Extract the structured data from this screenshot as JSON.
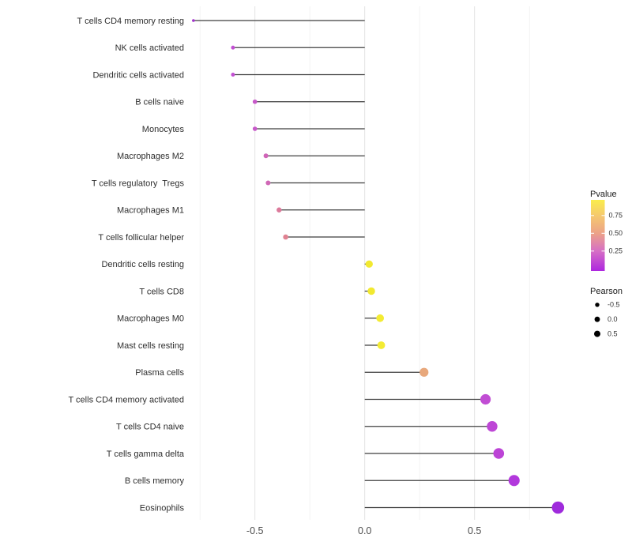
{
  "figure": {
    "background": "#ffffff",
    "panel_background": "#ffffff",
    "grid_major_color": "#e3e3e3",
    "grid_minor_color": "#f1f1f1",
    "stem_color": "#3f3f3f",
    "axis_text_color": "#4d4d4d",
    "label_text_color": "#2e2e2e"
  },
  "chart_data": {
    "type": "lollipop",
    "orientation": "horizontal",
    "title": "",
    "xlabel": "",
    "ylabel": "",
    "xlim": [
      -0.86,
      0.96
    ],
    "x_tick_values": [
      -0.5,
      0.0,
      0.5
    ],
    "x_tick_labels": [
      "-0.5",
      "0.0",
      "0.5"
    ],
    "x_minor_gridlines": [
      -0.75,
      -0.25,
      0.25,
      0.75
    ],
    "grid": "vertical gridlines only, light gray on white",
    "encoding": {
      "x": "Pearson correlation (stem from 0 to value)",
      "color": "Pvalue (purple = low, yellow = high)",
      "size": "Pearson (larger = higher value)"
    },
    "rows": [
      {
        "label": "T cells CD4 memory resting",
        "pearson": -0.78,
        "pvalue_approx": 0.03,
        "color": "#A233CC"
      },
      {
        "label": "NK cells activated",
        "pearson": -0.6,
        "pvalue_approx": 0.18,
        "color": "#C24FD2"
      },
      {
        "label": "Dendritic cells activated",
        "pearson": -0.6,
        "pvalue_approx": 0.18,
        "color": "#C24FD2"
      },
      {
        "label": "B cells naive",
        "pearson": -0.5,
        "pvalue_approx": 0.21,
        "color": "#C758C9"
      },
      {
        "label": "Monocytes",
        "pearson": -0.5,
        "pvalue_approx": 0.21,
        "color": "#C758C9"
      },
      {
        "label": "Macrophages M2",
        "pearson": -0.45,
        "pvalue_approx": 0.27,
        "color": "#D065B8"
      },
      {
        "label": "T cells regulatory  Tregs",
        "pearson": -0.44,
        "pvalue_approx": 0.27,
        "color": "#D068B6"
      },
      {
        "label": "Macrophages M1",
        "pearson": -0.39,
        "pvalue_approx": 0.35,
        "color": "#DC7A9B"
      },
      {
        "label": "T cells follicular helper",
        "pearson": -0.36,
        "pvalue_approx": 0.4,
        "color": "#E08292"
      },
      {
        "label": "Dendritic cells resting",
        "pearson": 0.02,
        "pvalue_approx": 0.92,
        "color": "#F2E930"
      },
      {
        "label": "T cells CD8",
        "pearson": 0.03,
        "pvalue_approx": 0.91,
        "color": "#F2E930"
      },
      {
        "label": "Macrophages M0",
        "pearson": 0.07,
        "pvalue_approx": 0.89,
        "color": "#F3EB33"
      },
      {
        "label": "Mast cells resting",
        "pearson": 0.075,
        "pvalue_approx": 0.89,
        "color": "#F3EB33"
      },
      {
        "label": "Plasma cells",
        "pearson": 0.27,
        "pvalue_approx": 0.55,
        "color": "#E8A87C"
      },
      {
        "label": "T cells CD4 memory activated",
        "pearson": 0.55,
        "pvalue_approx": 0.17,
        "color": "#C14DD4"
      },
      {
        "label": "T cells CD4 naive",
        "pearson": 0.58,
        "pvalue_approx": 0.15,
        "color": "#BE47D6"
      },
      {
        "label": "T cells gamma delta",
        "pearson": 0.61,
        "pvalue_approx": 0.14,
        "color": "#BC43D6"
      },
      {
        "label": "B cells memory",
        "pearson": 0.68,
        "pvalue_approx": 0.09,
        "color": "#B238DC"
      },
      {
        "label": "Eosinophils",
        "pearson": 0.88,
        "pvalue_approx": 0.04,
        "color": "#9F2BDC"
      }
    ],
    "legend_position": "right",
    "legends": {
      "pvalue": {
        "title": "Pvalue",
        "tick_labels": [
          "0.75",
          "0.50",
          "0.25"
        ],
        "tick_fracs_from_top": [
          0.22,
          0.47,
          0.72
        ],
        "gradient_top_to_bottom": [
          "#FAED4B",
          "#F5C96E",
          "#ECA288",
          "#D66FC5",
          "#AE27DF"
        ],
        "gradient_stop_fracs": [
          0,
          0.22,
          0.47,
          0.72,
          1
        ]
      },
      "pearson": {
        "title": "Pearson",
        "entries": [
          {
            "label": "-0.5",
            "radius": 2.7
          },
          {
            "label": "0.0",
            "radius": 3.4
          },
          {
            "label": "0.5",
            "radius": 4.0
          }
        ],
        "dot_color": "#000000"
      }
    }
  }
}
